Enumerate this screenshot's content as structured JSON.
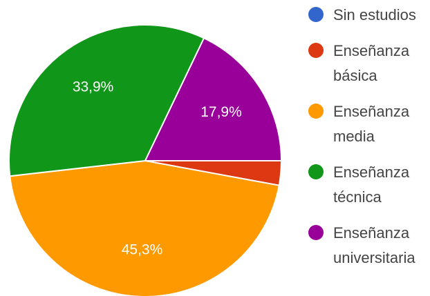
{
  "chart_data": {
    "type": "pie",
    "title": "",
    "legend_position": "right",
    "slices": [
      {
        "name": "Sin estudios",
        "value": 0,
        "color": "#3366cc",
        "label": ""
      },
      {
        "name": "Enseñanza básica",
        "value": 2.9,
        "color": "#dc3912",
        "label": ""
      },
      {
        "name": "Enseñanza media",
        "value": 45.3,
        "color": "#ff9900",
        "label": "45,3%"
      },
      {
        "name": "Enseñanza técnica",
        "value": 33.9,
        "color": "#109618",
        "label": "33,9%"
      },
      {
        "name": "Enseñanza universitaria",
        "value": 17.9,
        "color": "#990099",
        "label": "17,9%"
      }
    ]
  }
}
